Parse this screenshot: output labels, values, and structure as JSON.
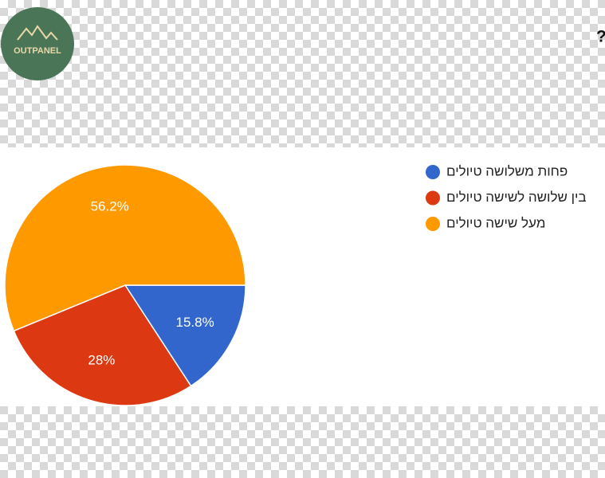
{
  "logo": "OUTPANEL",
  "chart_data": {
    "type": "pie",
    "title": "לכמה טיולים את/ה יוצא בשנה?",
    "categories": [
      "פחות משלושה טיולים",
      "בין שלושה לשישה טיולים",
      "מעל שישה טיולים"
    ],
    "values": [
      15.8,
      28,
      56.2
    ],
    "value_labels": [
      "15.8%",
      "28%",
      "56.2%"
    ],
    "colors": [
      "#3366cc",
      "#dc3912",
      "#ff9900"
    ]
  }
}
